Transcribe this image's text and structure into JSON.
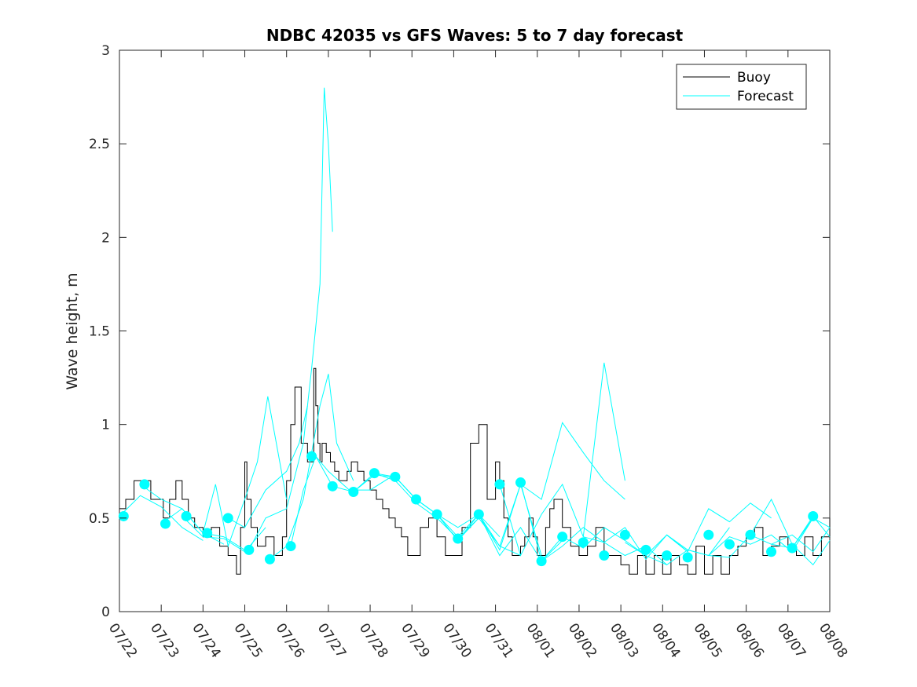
{
  "chart_data": {
    "type": "line",
    "title": "NDBC 42035 vs GFS Waves: 5 to 7 day forecast",
    "xlabel": "",
    "ylabel": "Wave height, m",
    "xlim": [
      0,
      17
    ],
    "ylim": [
      0,
      3
    ],
    "x_ticks": [
      0,
      1,
      2,
      3,
      4,
      5,
      6,
      7,
      8,
      9,
      10,
      11,
      12,
      13,
      14,
      15,
      16,
      17
    ],
    "x_tick_labels": [
      "07/22",
      "07/23",
      "07/24",
      "07/25",
      "07/26",
      "07/27",
      "07/28",
      "07/29",
      "07/30",
      "07/31",
      "08/01",
      "08/02",
      "08/03",
      "08/04",
      "08/05",
      "08/06",
      "08/07",
      "08/08"
    ],
    "y_ticks": [
      0,
      0.5,
      1,
      1.5,
      2,
      2.5,
      3
    ],
    "y_tick_labels": [
      "0",
      "0.5",
      "1",
      "1.5",
      "2",
      "2.5",
      "3"
    ],
    "grid": false,
    "legend": {
      "position": "top-right",
      "entries": [
        {
          "label": "Buoy",
          "color": "#000000"
        },
        {
          "label": "Forecast",
          "color": "#00ffff"
        }
      ]
    },
    "colors": {
      "buoy": "#000000",
      "forecast": "#00ffff",
      "marker": "#00ffff",
      "axis": "#262626"
    },
    "series": [
      {
        "name": "Buoy",
        "style": "step",
        "color": "#000000",
        "x": [
          0,
          0.15,
          0.35,
          0.55,
          0.75,
          0.9,
          1.05,
          1.2,
          1.35,
          1.5,
          1.65,
          1.8,
          2.0,
          2.2,
          2.4,
          2.6,
          2.8,
          2.9,
          3.0,
          3.05,
          3.15,
          3.3,
          3.5,
          3.7,
          3.9,
          4.0,
          4.1,
          4.2,
          4.35,
          4.5,
          4.65,
          4.7,
          4.75,
          4.8,
          4.85,
          4.9,
          4.95,
          5.05,
          5.15,
          5.25,
          5.35,
          5.45,
          5.55,
          5.7,
          5.85,
          6.0,
          6.15,
          6.3,
          6.45,
          6.6,
          6.75,
          6.9,
          7.05,
          7.2,
          7.4,
          7.6,
          7.8,
          8.0,
          8.2,
          8.4,
          8.6,
          8.8,
          9.0,
          9.1,
          9.2,
          9.3,
          9.4,
          9.5,
          9.6,
          9.7,
          9.8,
          9.9,
          10.0,
          10.1,
          10.2,
          10.3,
          10.4,
          10.6,
          10.8,
          11.0,
          11.2,
          11.4,
          11.6,
          11.8,
          12.0,
          12.2,
          12.4,
          12.6,
          12.8,
          13.0,
          13.2,
          13.4,
          13.6,
          13.8,
          14.0,
          14.2,
          14.4,
          14.6,
          14.8,
          15.0,
          15.2,
          15.4,
          15.6,
          15.8,
          16.0,
          16.2,
          16.4,
          16.6,
          16.8,
          17.0
        ],
        "y": [
          0.55,
          0.6,
          0.7,
          0.7,
          0.6,
          0.6,
          0.5,
          0.6,
          0.7,
          0.6,
          0.5,
          0.45,
          0.4,
          0.45,
          0.35,
          0.3,
          0.2,
          0.45,
          0.8,
          0.6,
          0.45,
          0.35,
          0.4,
          0.3,
          0.4,
          0.7,
          1.0,
          1.2,
          0.9,
          0.8,
          1.3,
          1.1,
          0.9,
          0.8,
          0.9,
          0.9,
          0.85,
          0.8,
          0.75,
          0.7,
          0.7,
          0.75,
          0.8,
          0.75,
          0.7,
          0.65,
          0.6,
          0.55,
          0.5,
          0.45,
          0.4,
          0.3,
          0.3,
          0.45,
          0.5,
          0.4,
          0.3,
          0.3,
          0.45,
          0.9,
          1.0,
          0.6,
          0.8,
          0.7,
          0.5,
          0.4,
          0.3,
          0.3,
          0.35,
          0.4,
          0.5,
          0.4,
          0.3,
          0.3,
          0.45,
          0.55,
          0.6,
          0.45,
          0.35,
          0.3,
          0.35,
          0.45,
          0.3,
          0.3,
          0.25,
          0.2,
          0.3,
          0.2,
          0.3,
          0.2,
          0.3,
          0.25,
          0.2,
          0.35,
          0.2,
          0.3,
          0.2,
          0.3,
          0.35,
          0.4,
          0.45,
          0.3,
          0.35,
          0.4,
          0.35,
          0.3,
          0.4,
          0.3,
          0.4,
          0.5
        ]
      },
      {
        "name": "",
        "color": "#00ffff",
        "x": [
          0.0,
          0.5,
          1.0,
          1.5,
          2.0
        ],
        "y": [
          0.51,
          0.62,
          0.56,
          0.45,
          0.38
        ]
      },
      {
        "name": "",
        "color": "#00ffff",
        "x": [
          0.5,
          1.0,
          1.5,
          2.0,
          2.5
        ],
        "y": [
          0.68,
          0.6,
          0.55,
          0.42,
          0.36
        ]
      },
      {
        "name": "",
        "color": "#00ffff",
        "x": [
          1.0,
          1.5,
          2.0,
          2.5,
          3.0
        ],
        "y": [
          0.47,
          0.55,
          0.42,
          0.4,
          0.33
        ]
      },
      {
        "name": "",
        "color": "#00ffff",
        "x": [
          1.5,
          2.0,
          2.5,
          3.0,
          3.5
        ],
        "y": [
          0.51,
          0.4,
          0.39,
          0.32,
          0.45
        ]
      },
      {
        "name": "",
        "color": "#00ffff",
        "x": [
          2.0,
          2.3,
          2.6,
          3.0,
          3.3,
          3.55,
          4.0
        ],
        "y": [
          0.42,
          0.68,
          0.35,
          0.6,
          0.8,
          1.15,
          0.6
        ]
      },
      {
        "name": "",
        "color": "#00ffff",
        "x": [
          2.6,
          3.0,
          3.5,
          4.0,
          4.3,
          4.5
        ],
        "y": [
          0.5,
          0.45,
          0.65,
          0.75,
          0.9,
          1.1
        ]
      },
      {
        "name": "",
        "color": "#00ffff",
        "x": [
          3.1,
          3.5,
          4.0,
          4.4,
          4.6,
          4.8,
          4.9,
          5.0,
          5.1
        ],
        "y": [
          0.33,
          0.5,
          0.55,
          0.9,
          1.3,
          1.75,
          2.8,
          2.5,
          2.03
        ]
      },
      {
        "name": "",
        "color": "#00ffff",
        "x": [
          3.6,
          4.0,
          4.4,
          4.8,
          5.0,
          5.2,
          5.6
        ],
        "y": [
          0.28,
          0.35,
          0.6,
          1.1,
          1.27,
          0.9,
          0.7
        ]
      },
      {
        "name": "",
        "color": "#00ffff",
        "x": [
          4.1,
          4.4,
          4.7,
          5.0,
          5.5,
          6.0,
          6.5,
          6.6
        ],
        "y": [
          0.35,
          0.65,
          0.83,
          0.75,
          0.65,
          0.65,
          0.72,
          0.7
        ]
      },
      {
        "name": "",
        "color": "#00ffff",
        "x": [
          4.7,
          5.1,
          5.6,
          6.1,
          6.6,
          7.1,
          7.6,
          8.1,
          8.6
        ],
        "y": [
          0.83,
          0.67,
          0.64,
          0.73,
          0.72,
          0.6,
          0.52,
          0.38,
          0.5
        ]
      },
      {
        "name": "",
        "color": "#00ffff",
        "x": [
          5.6,
          6.1,
          6.6,
          7.1,
          7.6,
          8.1,
          8.6,
          9.1
        ],
        "y": [
          0.64,
          0.74,
          0.72,
          0.6,
          0.52,
          0.45,
          0.52,
          0.4
        ]
      },
      {
        "name": "",
        "color": "#00ffff",
        "x": [
          6.1,
          6.6,
          7.1,
          7.6,
          8.1,
          8.6,
          9.1,
          9.6
        ],
        "y": [
          0.74,
          0.7,
          0.58,
          0.5,
          0.39,
          0.5,
          0.35,
          0.3
        ]
      },
      {
        "name": "",
        "color": "#00ffff",
        "x": [
          6.6,
          7.1,
          7.6,
          8.1,
          8.6,
          9.1,
          9.6,
          10.1
        ],
        "y": [
          0.72,
          0.6,
          0.52,
          0.4,
          0.52,
          0.33,
          0.68,
          0.3
        ]
      },
      {
        "name": "",
        "color": "#00ffff",
        "x": [
          7.1,
          7.6,
          8.1,
          8.6,
          9.1,
          9.6,
          10.1,
          10.6
        ],
        "y": [
          0.6,
          0.52,
          0.38,
          0.52,
          0.3,
          0.45,
          0.27,
          0.38
        ]
      },
      {
        "name": "",
        "color": "#00ffff",
        "x": [
          8.6,
          9.1,
          9.6,
          10.1,
          10.6,
          11.1,
          11.6,
          12.1
        ],
        "y": [
          0.52,
          0.35,
          0.68,
          0.6,
          1.01,
          0.85,
          0.7,
          0.6
        ]
      },
      {
        "name": "",
        "color": "#00ffff",
        "x": [
          9.1,
          9.6,
          10.1,
          10.6,
          11.1,
          11.6,
          12.1
        ],
        "y": [
          0.68,
          0.3,
          0.52,
          0.68,
          0.4,
          1.33,
          0.7
        ]
      },
      {
        "name": "",
        "color": "#00ffff",
        "x": [
          9.6,
          10.1,
          10.6,
          11.1,
          11.6,
          12.1,
          12.6,
          13.1
        ],
        "y": [
          0.69,
          0.27,
          0.4,
          0.34,
          0.45,
          0.38,
          0.3,
          0.25
        ]
      },
      {
        "name": "",
        "color": "#00ffff",
        "x": [
          10.1,
          10.6,
          11.1,
          11.6,
          12.1,
          12.6,
          13.1,
          13.6
        ],
        "y": [
          0.27,
          0.35,
          0.45,
          0.37,
          0.45,
          0.28,
          0.41,
          0.32
        ]
      },
      {
        "name": "",
        "color": "#00ffff",
        "x": [
          11.1,
          11.6,
          12.1,
          12.6,
          13.1,
          13.6,
          14.1,
          14.6
        ],
        "y": [
          0.4,
          0.37,
          0.3,
          0.35,
          0.25,
          0.33,
          0.3,
          0.45
        ]
      },
      {
        "name": "",
        "color": "#00ffff",
        "x": [
          12.1,
          12.6,
          13.1,
          13.6,
          14.1,
          14.6,
          15.1,
          15.6
        ],
        "y": [
          0.37,
          0.3,
          0.41,
          0.32,
          0.55,
          0.48,
          0.58,
          0.5
        ]
      },
      {
        "name": "",
        "color": "#00ffff",
        "x": [
          13.1,
          13.6,
          14.1,
          14.6,
          15.1,
          15.6,
          16.1,
          16.6
        ],
        "y": [
          0.41,
          0.33,
          0.3,
          0.4,
          0.36,
          0.41,
          0.32,
          0.5
        ]
      },
      {
        "name": "",
        "color": "#00ffff",
        "x": [
          14.1,
          14.6,
          15.1,
          15.6,
          16.1,
          16.6,
          17.0
        ],
        "y": [
          0.3,
          0.29,
          0.41,
          0.36,
          0.41,
          0.32,
          0.45
        ]
      },
      {
        "name": "",
        "color": "#00ffff",
        "x": [
          15.1,
          15.6,
          16.1,
          16.6,
          17.0
        ],
        "y": [
          0.41,
          0.6,
          0.36,
          0.25,
          0.38
        ]
      },
      {
        "name": "",
        "color": "#00ffff",
        "x": [
          15.6,
          16.1,
          16.6,
          17.0
        ],
        "y": [
          0.36,
          0.34,
          0.5,
          0.45
        ]
      },
      {
        "name": "",
        "color": "#00ffff",
        "x": [
          16.1,
          16.6,
          17.0
        ],
        "y": [
          0.34,
          0.51,
          0.4
        ]
      }
    ],
    "markers": {
      "color": "#00ffff",
      "x": [
        0.1,
        0.6,
        1.1,
        1.6,
        2.1,
        2.6,
        3.1,
        3.6,
        4.1,
        4.6,
        5.1,
        5.6,
        6.1,
        6.6,
        7.1,
        7.6,
        8.1,
        8.6,
        9.1,
        9.6,
        10.1,
        10.6,
        11.1,
        11.6,
        12.1,
        12.6,
        13.1,
        13.6,
        14.1,
        14.6,
        15.1,
        15.6,
        16.1,
        16.6
      ],
      "y": [
        0.51,
        0.68,
        0.47,
        0.51,
        0.42,
        0.5,
        0.33,
        0.28,
        0.35,
        0.83,
        0.67,
        0.64,
        0.74,
        0.72,
        0.6,
        0.52,
        0.39,
        0.52,
        0.68,
        0.69,
        0.27,
        0.4,
        0.37,
        0.3,
        0.41,
        0.33,
        0.3,
        0.29,
        0.41,
        0.36,
        0.41,
        0.32,
        0.34,
        0.51
      ]
    }
  }
}
